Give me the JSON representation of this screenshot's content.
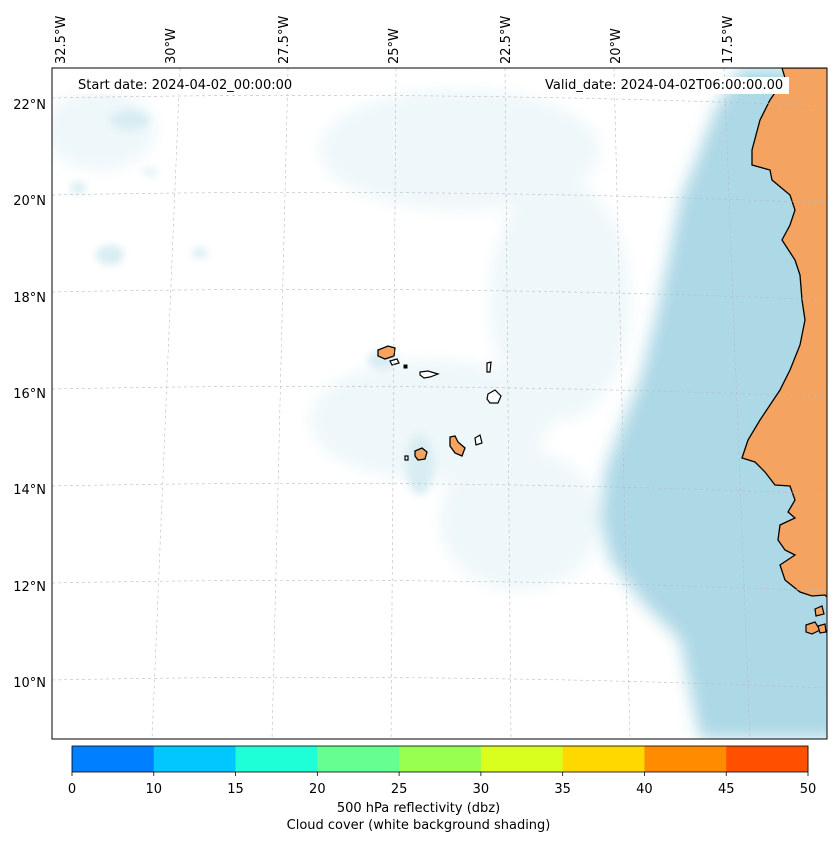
{
  "map": {
    "start_date": "Start date: 2024-04-02_00:00:00",
    "valid_date": "Valid_date: 2024-04-02T06:00:00.00",
    "lon_labels": [
      "32.5°W",
      "30°W",
      "27.5°W",
      "25°W",
      "22.5°W",
      "20°W",
      "17.5°W"
    ],
    "lat_labels": [
      "22°N",
      "20°N",
      "18°N",
      "16°N",
      "14°N",
      "12°N",
      "10°N"
    ],
    "land_color": "#f4a460",
    "cloud_color": "#add8e6",
    "gridlines": true
  },
  "colorbar": {
    "ticks": [
      "0",
      "10",
      "15",
      "20",
      "25",
      "30",
      "35",
      "40",
      "45",
      "50"
    ],
    "colors": [
      "#0080ff",
      "#00c8ff",
      "#1effd8",
      "#64ff90",
      "#98ff50",
      "#d8ff1e",
      "#ffd800",
      "#ff8c00",
      "#ff5000"
    ],
    "label_line1": "500 hPa reflectivity (dbz)",
    "label_line2": "Cloud cover (white background shading)"
  }
}
